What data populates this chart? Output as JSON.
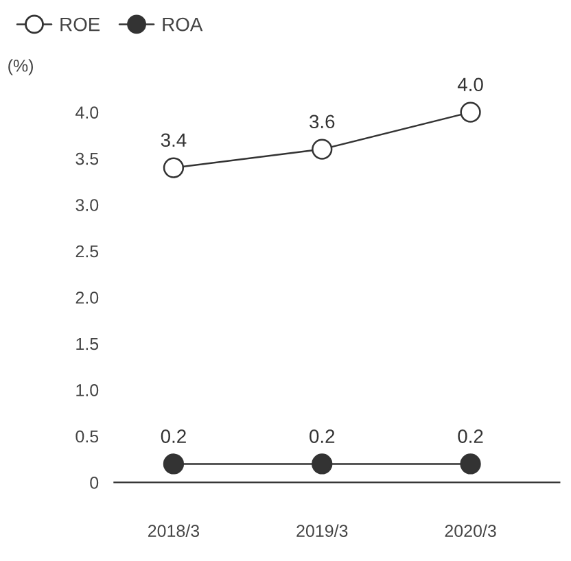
{
  "chart_data": {
    "type": "line",
    "ylabel": "(%)",
    "categories": [
      "2018/3",
      "2019/3",
      "2020/3"
    ],
    "series": [
      {
        "name": "ROE",
        "color": "#ffffff",
        "values": [
          3.4,
          3.6,
          4.0
        ],
        "value_labels": [
          "3.4",
          "3.6",
          "4.0"
        ]
      },
      {
        "name": "ROA",
        "color": "#333333",
        "values": [
          0.2,
          0.2,
          0.2
        ],
        "value_labels": [
          "0.2",
          "0.2",
          "0.2"
        ]
      }
    ],
    "ylim": [
      0,
      4.0
    ],
    "yticks": [
      0,
      0.5,
      {
        "value": 1,
        "label": "1.0"
      },
      1.5,
      {
        "value": 2,
        "label": "2.0"
      },
      2.5,
      {
        "value": 3,
        "label": "3.0"
      },
      3.5,
      {
        "value": 4,
        "label": "4.0"
      }
    ],
    "marker": "circle",
    "line_style": "solid",
    "legend": "top left"
  }
}
